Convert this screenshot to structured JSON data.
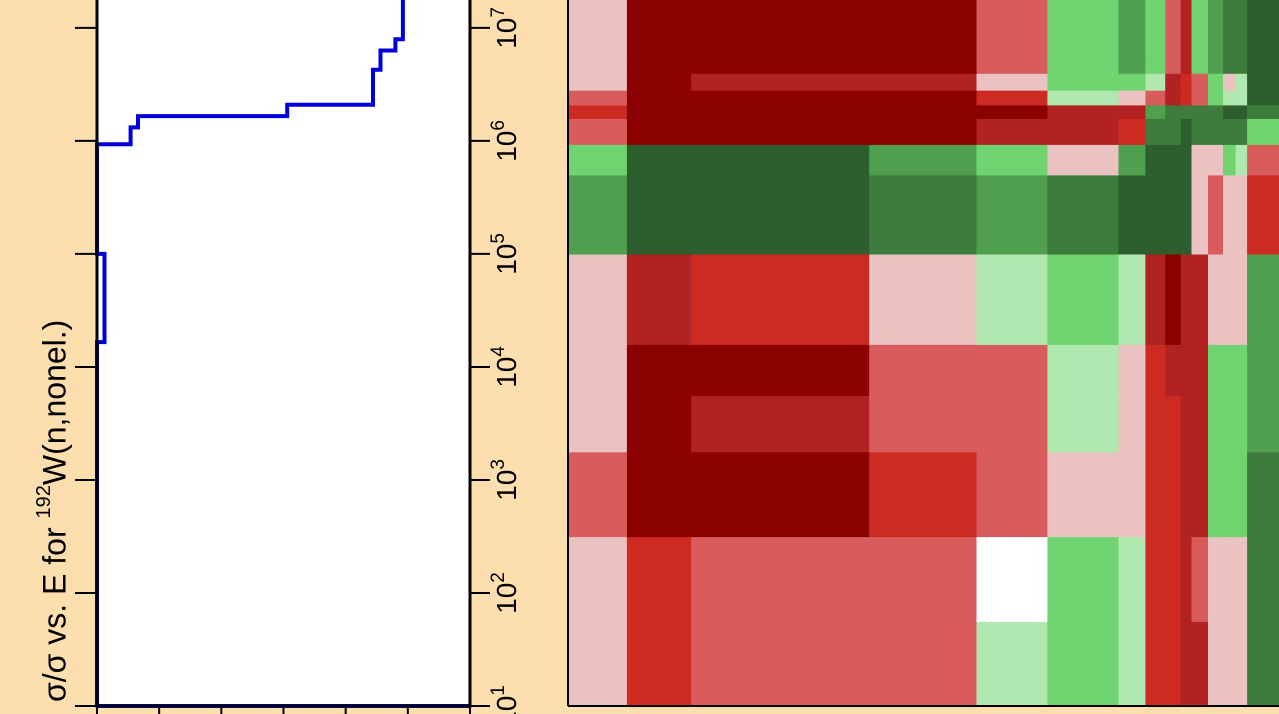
{
  "chart_data": [
    {
      "type": "line",
      "ylabel_parts": {
        "before": "σ/σ vs. E for ",
        "sup": "192",
        "after": "W(n,nonel.)"
      },
      "yscale": "log",
      "ylim_exponent": [
        1,
        7
      ],
      "ytick_exponents": [
        1,
        2,
        3,
        4,
        5,
        6,
        7
      ],
      "ytick_base": "10",
      "step_curve": [
        {
          "x": 0.0,
          "yexp": 1.0
        },
        {
          "x": 0.0,
          "yexp": 4.22
        },
        {
          "x": 0.02,
          "yexp": 4.22
        },
        {
          "x": 0.02,
          "yexp": 5.0
        },
        {
          "x": 0.0,
          "yexp": 5.0
        },
        {
          "x": 0.0,
          "yexp": 5.97
        },
        {
          "x": 0.09,
          "yexp": 5.97
        },
        {
          "x": 0.09,
          "yexp": 6.12
        },
        {
          "x": 0.11,
          "yexp": 6.12
        },
        {
          "x": 0.11,
          "yexp": 6.22
        },
        {
          "x": 0.51,
          "yexp": 6.22
        },
        {
          "x": 0.51,
          "yexp": 6.32
        },
        {
          "x": 0.74,
          "yexp": 6.32
        },
        {
          "x": 0.74,
          "yexp": 6.63
        },
        {
          "x": 0.76,
          "yexp": 6.63
        },
        {
          "x": 0.76,
          "yexp": 6.8
        },
        {
          "x": 0.8,
          "yexp": 6.8
        },
        {
          "x": 0.8,
          "yexp": 6.9
        },
        {
          "x": 0.82,
          "yexp": 6.9
        },
        {
          "x": 0.82,
          "yexp": 7.3
        },
        {
          "x": 1.0,
          "yexp": 7.3
        }
      ],
      "bottom_line_exp": 1.0,
      "line_color": "#0000DD"
    },
    {
      "type": "heatmap",
      "palette": {
        "n4": "#8B0000",
        "n3": "#B22222",
        "n2": "#CD2A22",
        "n1": "#D95C5C",
        "z": "#EAC2C2",
        "w": "#FFFFFF",
        "p1": "#B0E8B0",
        "p2": "#6FD46F",
        "p3": "#4F9F4F",
        "p4": "#3D7C3D",
        "p5": "#2E5E2E"
      },
      "col_edges": [
        0,
        0.0829,
        0.1732,
        0.4236,
        0.5745,
        0.6743,
        0.7742,
        0.8121,
        0.8399,
        0.8618,
        0.8769,
        0.9001,
        0.9212,
        0.9389,
        0.9551,
        1.0
      ],
      "row_edges": [
        1.0,
        1.75,
        2.5,
        3.25,
        3.75,
        4.2,
        5.0,
        5.7,
        5.97,
        6.2,
        6.32,
        6.45,
        6.6,
        6.75,
        7.0,
        7.3
      ],
      "rows": [
        [
          "z",
          "n2",
          "n1",
          "n1",
          "p1",
          "p2",
          "p1",
          "n2",
          "n2",
          "n3",
          "n3",
          "z",
          "z",
          "z",
          "p4"
        ],
        [
          "z",
          "n2",
          "n1",
          "n1",
          "w",
          "p2",
          "p1",
          "n2",
          "n2",
          "n3",
          "n1",
          "z",
          "z",
          "z",
          "p4"
        ],
        [
          "n1",
          "n4",
          "n4",
          "n2",
          "n1",
          "z",
          "z",
          "n2",
          "n2",
          "n3",
          "n3",
          "p2",
          "p2",
          "p2",
          "p4"
        ],
        [
          "z",
          "n4",
          "n3",
          "n1",
          "n1",
          "p1",
          "z",
          "n2",
          "n2",
          "n3",
          "n3",
          "p2",
          "p2",
          "p2",
          "p3"
        ],
        [
          "z",
          "n4",
          "n4",
          "n1",
          "n1",
          "p1",
          "z",
          "n2",
          "n3",
          "n3",
          "n3",
          "p2",
          "p2",
          "p2",
          "p3"
        ],
        [
          "z",
          "n3",
          "n2",
          "z",
          "p1",
          "p2",
          "p1",
          "n3",
          "n4",
          "n3",
          "n3",
          "z",
          "z",
          "z",
          "p3"
        ],
        [
          "p3",
          "p5",
          "p5",
          "p4",
          "p3",
          "p4",
          "p5",
          "p5",
          "p5",
          "p5",
          "z",
          "n1",
          "z",
          "z",
          "n2"
        ],
        [
          "p2",
          "p5",
          "p5",
          "p3",
          "p2",
          "z",
          "p3",
          "p5",
          "p5",
          "p5",
          "z",
          "z",
          "p2",
          "p1",
          "n1"
        ],
        [
          "n1",
          "n4",
          "n4",
          "n4",
          "n3",
          "n3",
          "n2",
          "p4",
          "p4",
          "p5",
          "p4",
          "p4",
          "p4",
          "p4",
          "p2"
        ],
        [
          "n2",
          "n4",
          "n4",
          "n4",
          "n4",
          "n3",
          "n3",
          "p3",
          "p4",
          "p4",
          "p4",
          "p4",
          "p5",
          "p5",
          "p4"
        ],
        [
          "n1",
          "n4",
          "n4",
          "n4",
          "n2",
          "p1",
          "z",
          "n1",
          "n3",
          "n2",
          "n1",
          "p2",
          "p1",
          "p1",
          "p5"
        ],
        [
          "z",
          "n4",
          "n3",
          "n3",
          "z",
          "p2",
          "p2",
          "p1",
          "n3",
          "n2",
          "n1",
          "p2",
          "z",
          "p1",
          "p5"
        ],
        [
          "z",
          "n4",
          "n4",
          "n4",
          "n1",
          "p2",
          "p3",
          "p2",
          "n1",
          "n3",
          "p2",
          "p3",
          "p4",
          "p4",
          "p5"
        ],
        [
          "z",
          "n4",
          "n4",
          "n4",
          "n1",
          "p2",
          "p3",
          "p2",
          "n1",
          "n3",
          "p2",
          "p3",
          "p4",
          "p4",
          "p5"
        ],
        [
          "z",
          "n4",
          "n4",
          "n4",
          "n1",
          "p2",
          "p3",
          "p2",
          "n1",
          "n3",
          "p2",
          "p3",
          "p4",
          "p4",
          "p5"
        ]
      ]
    }
  ]
}
